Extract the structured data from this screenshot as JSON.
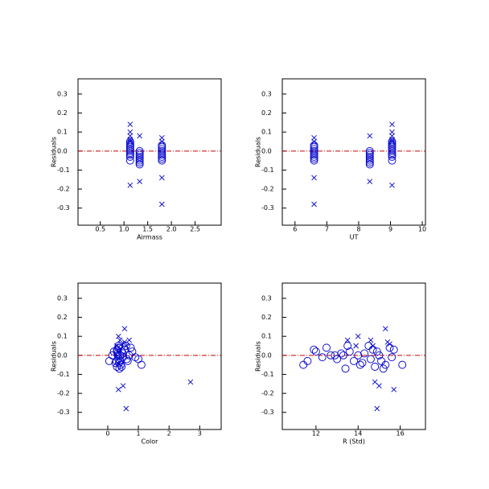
{
  "chart_data": [
    {
      "type": "scatter",
      "x_label": "Airmass",
      "y_label": "Residuals",
      "xlim": [
        0.03,
        3.05
      ],
      "ylim": [
        -0.39,
        0.38
      ],
      "xticks": [
        0.5,
        {
          "value": 1,
          "label": "1.0"
        },
        1.5,
        {
          "value": 2,
          "label": "2.0"
        },
        2.5
      ],
      "yticks": [
        -0.3,
        -0.2,
        -0.1,
        {
          "value": 0,
          "label": "0.0"
        },
        0.1,
        0.2,
        0.3
      ],
      "hline": 0,
      "hline_color": "#cc0000",
      "series": [
        {
          "marker": "circle",
          "color": "#0000cc",
          "x": [
            1.13,
            1.13,
            1.13,
            1.13,
            1.13,
            1.13,
            1.13,
            1.13,
            1.13,
            1.13,
            1.33,
            1.33,
            1.33,
            1.33,
            1.33,
            1.33,
            1.33,
            1.33,
            1.8,
            1.8,
            1.8,
            1.8,
            1.8,
            1.8,
            1.8,
            1.8,
            1.8
          ],
          "y": [
            0.05,
            0.04,
            0.03,
            0.02,
            0.01,
            0,
            -0.01,
            -0.02,
            -0.03,
            -0.05,
            0,
            -0.01,
            -0.02,
            -0.03,
            -0.04,
            -0.05,
            -0.06,
            -0.07,
            0.03,
            0.02,
            0.01,
            0,
            -0.01,
            -0.02,
            -0.03,
            -0.04,
            -0.05
          ]
        },
        {
          "marker": "cross",
          "color": "#0000cc",
          "x": [
            1.13,
            1.13,
            1.13,
            1.13,
            1.13,
            1.13,
            1.33,
            1.33,
            1.8,
            1.8,
            1.8,
            1.8
          ],
          "y": [
            0.14,
            0.1,
            0.08,
            0.06,
            0.05,
            -0.18,
            0.08,
            -0.16,
            0.07,
            0.05,
            -0.14,
            -0.28
          ]
        }
      ]
    },
    {
      "type": "scatter",
      "x_label": "UT",
      "y_label": "Residuals",
      "xlim": [
        5.6,
        10.1
      ],
      "ylim": [
        -0.39,
        0.38
      ],
      "xticks": [
        6,
        7,
        8,
        9,
        10
      ],
      "yticks": [
        -0.3,
        -0.2,
        -0.1,
        {
          "value": 0,
          "label": "0.0"
        },
        0.1,
        0.2,
        0.3
      ],
      "hline": 0,
      "hline_color": "#cc0000",
      "series": [
        {
          "marker": "circle",
          "color": "#0000cc",
          "x": [
            9.05,
            9.05,
            9.05,
            9.05,
            9.05,
            9.05,
            9.05,
            9.05,
            9.05,
            9.05,
            8.35,
            8.35,
            8.35,
            8.35,
            8.35,
            8.35,
            8.35,
            8.35,
            6.6,
            6.6,
            6.6,
            6.6,
            6.6,
            6.6,
            6.6,
            6.6,
            6.6
          ],
          "y": [
            0.05,
            0.04,
            0.03,
            0.02,
            0.01,
            0,
            -0.01,
            -0.02,
            -0.03,
            -0.05,
            0,
            -0.01,
            -0.02,
            -0.03,
            -0.04,
            -0.05,
            -0.06,
            -0.07,
            0.03,
            0.02,
            0.01,
            0,
            -0.01,
            -0.02,
            -0.03,
            -0.04,
            -0.05
          ]
        },
        {
          "marker": "cross",
          "color": "#0000cc",
          "x": [
            9.05,
            9.05,
            9.05,
            9.05,
            9.05,
            9.05,
            8.35,
            8.35,
            6.6,
            6.6,
            6.6,
            6.6
          ],
          "y": [
            0.14,
            0.1,
            0.08,
            0.06,
            0.05,
            -0.18,
            0.08,
            -0.16,
            0.07,
            0.05,
            -0.14,
            -0.28
          ]
        }
      ]
    },
    {
      "type": "scatter",
      "x_label": "Color",
      "y_label": "Residuals",
      "xlim": [
        -0.97,
        3.7
      ],
      "ylim": [
        -0.39,
        0.38
      ],
      "xticks": [
        0,
        1,
        2,
        3
      ],
      "yticks": [
        -0.3,
        -0.2,
        -0.1,
        {
          "value": 0,
          "label": "0.0"
        },
        0.1,
        0.2,
        0.3
      ],
      "hline": 0,
      "hline_color": "#cc0000",
      "series": [
        {
          "marker": "circle",
          "color": "#0000cc",
          "x": [
            0.05,
            0.15,
            0.2,
            0.25,
            0.3,
            0.3,
            0.32,
            0.35,
            0.35,
            0.38,
            0.4,
            0.42,
            0.45,
            0.5,
            0.55,
            0.6,
            0.65,
            0.7,
            0.75,
            0.8,
            0.9,
            1.0,
            1.1,
            0.28,
            0.33,
            0.37,
            0.45,
            0.5,
            0.62,
            0.3,
            0.4,
            0.35
          ],
          "y": [
            -0.03,
            0.0,
            0.02,
            -0.04,
            0.03,
            -0.06,
            0.01,
            -0.02,
            0.04,
            -0.07,
            0.0,
            -0.05,
            0.02,
            -0.01,
            0.03,
            0.05,
            -0.03,
            0.0,
            0.04,
            0.02,
            -0.01,
            -0.02,
            -0.05,
            -0.03,
            0.0,
            -0.04,
            -0.06,
            0.01,
            -0.02,
            0.02,
            -0.03,
            0.05
          ]
        },
        {
          "marker": "cross",
          "color": "#0000cc",
          "x": [
            0.35,
            0.4,
            0.45,
            0.55,
            0.6,
            0.3,
            0.35,
            0.5,
            0.55,
            0.6,
            2.7,
            0.7
          ],
          "y": [
            0.1,
            0.08,
            0.06,
            0.14,
            -0.28,
            0.05,
            -0.18,
            -0.16,
            0.07,
            0.05,
            -0.14,
            0.08
          ]
        }
      ]
    },
    {
      "type": "scatter",
      "x_label": "R (Std)",
      "y_label": "Residuals",
      "xlim": [
        10.4,
        17.2
      ],
      "ylim": [
        -0.39,
        0.38
      ],
      "xticks": [
        12,
        14,
        16
      ],
      "yticks": [
        -0.3,
        -0.2,
        -0.1,
        {
          "value": 0,
          "label": "0.0"
        },
        0.1,
        0.2,
        0.3
      ],
      "hline": 0,
      "hline_color": "#cc0000",
      "series": [
        {
          "marker": "circle",
          "color": "#0000cc",
          "x": [
            11.4,
            11.6,
            11.9,
            12.0,
            12.3,
            12.5,
            12.7,
            12.9,
            13.0,
            13.2,
            13.4,
            13.5,
            13.6,
            13.8,
            14.0,
            14.1,
            14.3,
            14.5,
            14.6,
            14.7,
            14.8,
            15.0,
            15.1,
            15.3,
            15.5,
            15.6,
            15.7,
            16.1,
            13.3,
            14.2,
            14.9,
            15.2
          ],
          "y": [
            -0.05,
            -0.03,
            0.03,
            0.02,
            -0.01,
            0.04,
            0.0,
            0.0,
            -0.02,
            0.01,
            -0.07,
            0.05,
            0.02,
            -0.03,
            0.0,
            -0.05,
            0.01,
            0.05,
            -0.02,
            0.03,
            -0.06,
            0.0,
            -0.03,
            -0.05,
            0.04,
            -0.01,
            0.03,
            -0.05,
            0.0,
            -0.04,
            0.02,
            -0.07
          ]
        },
        {
          "marker": "cross",
          "color": "#0000cc",
          "x": [
            13.5,
            14.0,
            15.3,
            14.8,
            15.0,
            14.9,
            15.7,
            15.4,
            14.7,
            15.5,
            13.9,
            14.6
          ],
          "y": [
            0.08,
            0.1,
            0.14,
            -0.14,
            -0.16,
            -0.28,
            -0.18,
            0.07,
            0.05,
            0.06,
            0.05,
            0.08
          ]
        }
      ]
    }
  ]
}
